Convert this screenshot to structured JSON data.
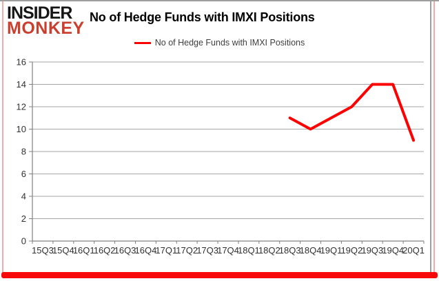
{
  "brand": {
    "line1": "INSIDER",
    "line2": "MONKEY",
    "black": "#161616",
    "red": "#cb3f2e"
  },
  "header": {
    "title": "No of Hedge Funds with IMXI Positions"
  },
  "legend": {
    "label": "No of Hedge Funds with IMXI Positions",
    "color": "#ff0000",
    "position": "top-center"
  },
  "chart_data": {
    "type": "line",
    "title": "No of Hedge Funds with IMXI Positions",
    "categories": [
      "15Q3",
      "15Q4",
      "16Q1",
      "16Q2",
      "16Q3",
      "16Q4",
      "17Q1",
      "17Q2",
      "17Q3",
      "17Q4",
      "18Q1",
      "18Q2",
      "18Q3",
      "18Q4",
      "19Q1",
      "19Q2",
      "19Q3",
      "19Q4",
      "20Q1"
    ],
    "series": [
      {
        "name": "No of Hedge Funds with IMXI Positions",
        "color": "#ff0000",
        "values": [
          null,
          null,
          null,
          null,
          null,
          null,
          null,
          null,
          null,
          null,
          null,
          null,
          11,
          10,
          11,
          12,
          14,
          14,
          9
        ]
      }
    ],
    "xlabel": "",
    "ylabel": "",
    "ylim": [
      0,
      16
    ],
    "ytick_step": 2,
    "grid": true,
    "legend_position": "top"
  },
  "colors": {
    "accent_bottom_bar": "#f90a0a",
    "pink_edge": "#f5aaa6",
    "gray_edge": "#9d9d9d",
    "gridline": "#a6a6a6",
    "axis": "#808080",
    "tick_label": "#303030",
    "line": "#ff0000"
  }
}
